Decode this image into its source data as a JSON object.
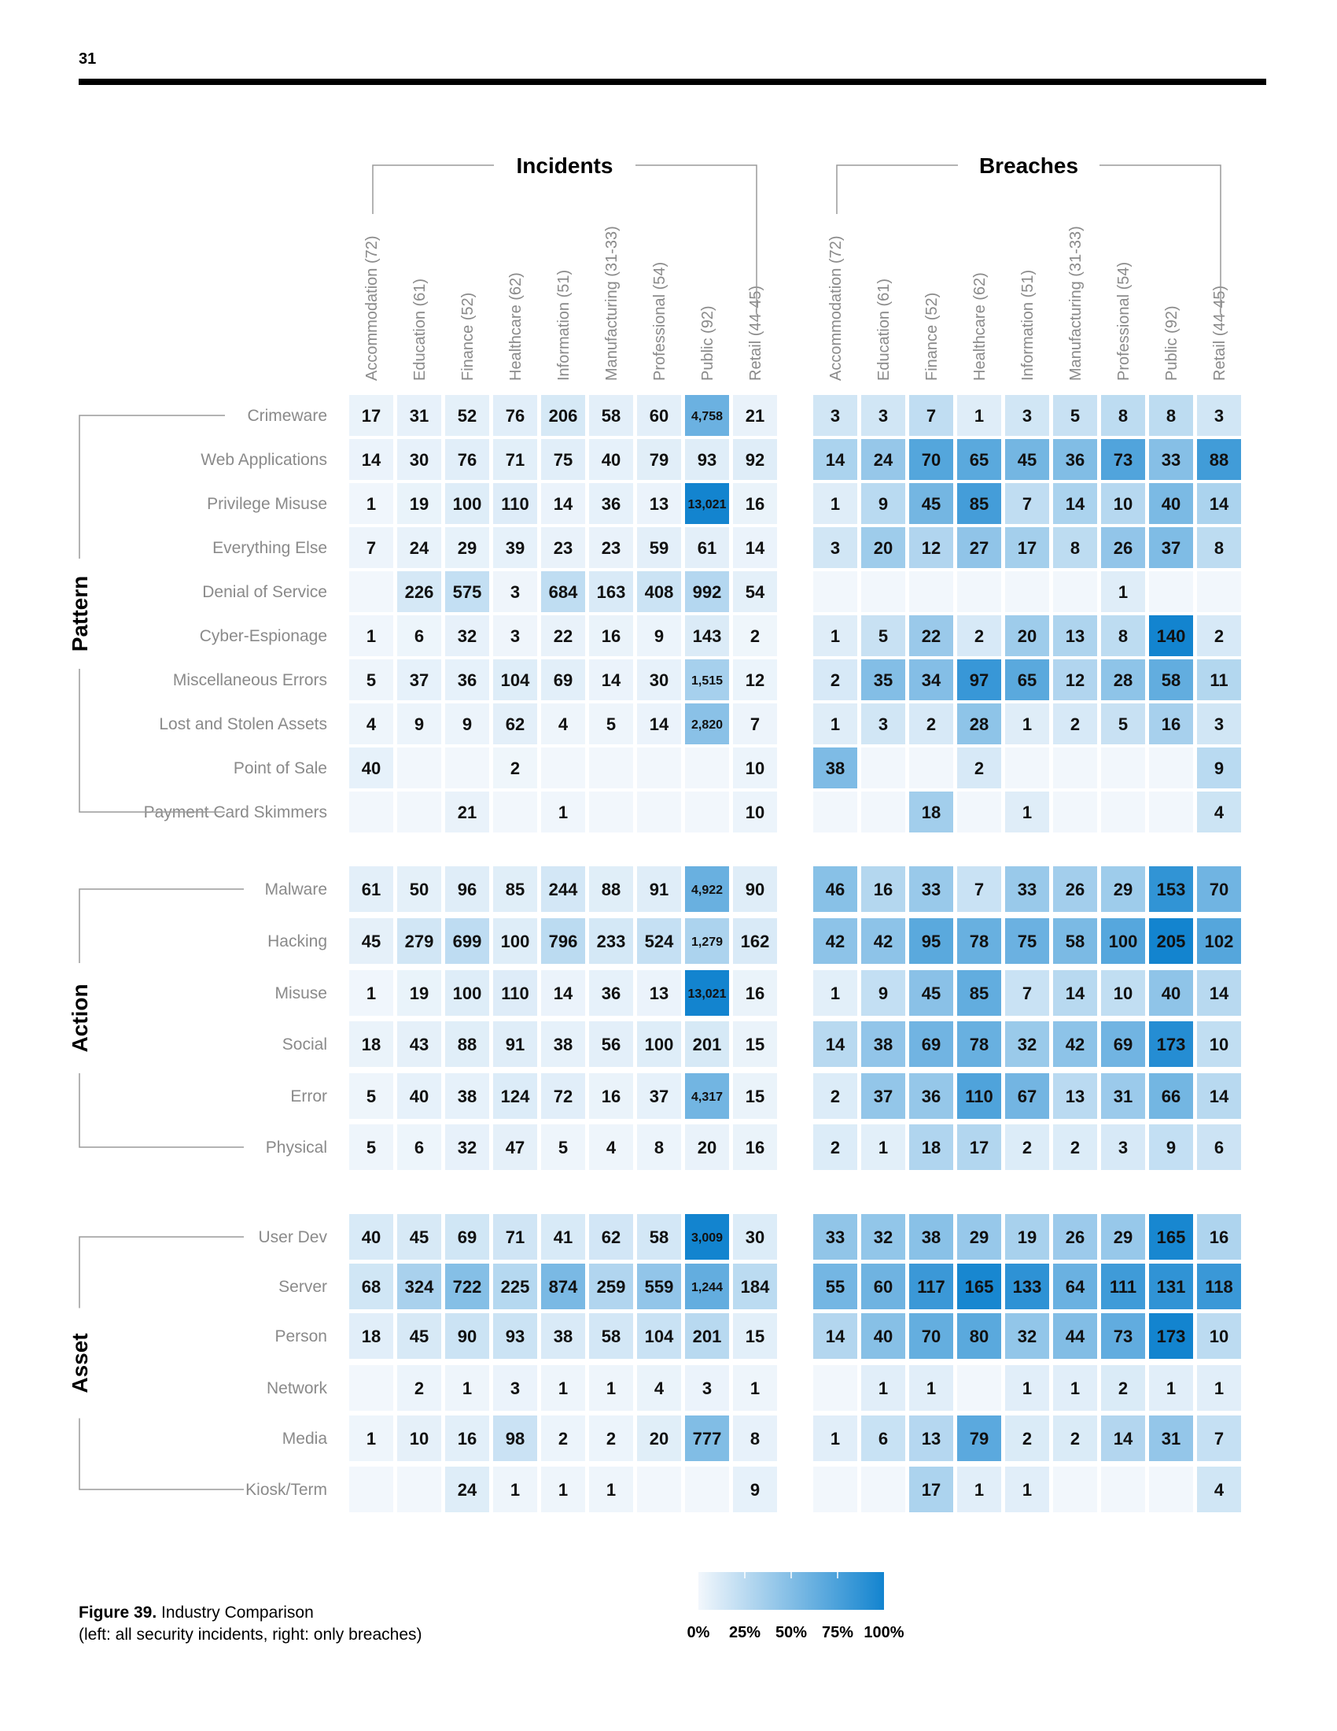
{
  "page_number": "31",
  "caption": {
    "figure": "Figure 39.",
    "title": "Industry Comparison",
    "note": "(left: all security incidents, right: only breaches)"
  },
  "legend": {
    "ticks": [
      "0%",
      "25%",
      "50%",
      "75%",
      "100%"
    ],
    "color_low": "#f2f7fc",
    "color_high": "#1384cf"
  },
  "chart_data": {
    "type": "heatmap",
    "panels": [
      {
        "title": "Incidents",
        "columns": [
          "Accommodation (72)",
          "Education (61)",
          "Finance (52)",
          "Healthcare (62)",
          "Information (51)",
          "Manufacturing (31-33)",
          "Professional (54)",
          "Public (92)",
          "Retail (44-45)"
        ]
      },
      {
        "title": "Breaches",
        "columns": [
          "Accommodation (72)",
          "Education (61)",
          "Finance (52)",
          "Healthcare (62)",
          "Information (51)",
          "Manufacturing (31-33)",
          "Professional (54)",
          "Public (92)",
          "Retail (44-45)"
        ]
      }
    ],
    "groups": [
      {
        "name": "Pattern",
        "rows": [
          {
            "label": "Crimeware",
            "incidents": [
              17,
              31,
              52,
              76,
              206,
              58,
              60,
              4758,
              21
            ],
            "breaches": [
              3,
              3,
              7,
              1,
              3,
              5,
              8,
              8,
              3
            ]
          },
          {
            "label": "Web Applications",
            "incidents": [
              14,
              30,
              76,
              71,
              75,
              40,
              79,
              93,
              92
            ],
            "breaches": [
              14,
              24,
              70,
              65,
              45,
              36,
              73,
              33,
              88
            ]
          },
          {
            "label": "Privilege Misuse",
            "incidents": [
              1,
              19,
              100,
              110,
              14,
              36,
              13,
              13021,
              16
            ],
            "breaches": [
              1,
              9,
              45,
              85,
              7,
              14,
              10,
              40,
              14
            ]
          },
          {
            "label": "Everything Else",
            "incidents": [
              7,
              24,
              29,
              39,
              23,
              23,
              59,
              61,
              14
            ],
            "breaches": [
              3,
              20,
              12,
              27,
              17,
              8,
              26,
              37,
              8
            ]
          },
          {
            "label": "Denial of Service",
            "incidents": [
              null,
              226,
              575,
              3,
              684,
              163,
              408,
              992,
              54
            ],
            "breaches": [
              null,
              null,
              null,
              null,
              null,
              null,
              1,
              null,
              null
            ]
          },
          {
            "label": "Cyber-Espionage",
            "incidents": [
              1,
              6,
              32,
              3,
              22,
              16,
              9,
              143,
              2
            ],
            "breaches": [
              1,
              5,
              22,
              2,
              20,
              13,
              8,
              140,
              2
            ]
          },
          {
            "label": "Miscellaneous Errors",
            "incidents": [
              5,
              37,
              36,
              104,
              69,
              14,
              30,
              1515,
              12
            ],
            "breaches": [
              2,
              35,
              34,
              97,
              65,
              12,
              28,
              58,
              11
            ]
          },
          {
            "label": "Lost and Stolen Assets",
            "incidents": [
              4,
              9,
              9,
              62,
              4,
              5,
              14,
              2820,
              7
            ],
            "breaches": [
              1,
              3,
              2,
              28,
              1,
              2,
              5,
              16,
              3
            ]
          },
          {
            "label": "Point of Sale",
            "incidents": [
              40,
              null,
              null,
              2,
              null,
              null,
              null,
              null,
              10
            ],
            "breaches": [
              38,
              null,
              null,
              2,
              null,
              null,
              null,
              null,
              9
            ]
          },
          {
            "label": "Payment Card Skimmers",
            "incidents": [
              null,
              null,
              21,
              null,
              1,
              null,
              null,
              null,
              10
            ],
            "breaches": [
              null,
              null,
              18,
              null,
              1,
              null,
              null,
              null,
              4
            ]
          }
        ]
      },
      {
        "name": "Action",
        "rows": [
          {
            "label": "Malware",
            "incidents": [
              61,
              50,
              96,
              85,
              244,
              88,
              91,
              4922,
              90
            ],
            "breaches": [
              46,
              16,
              33,
              7,
              33,
              26,
              29,
              153,
              70
            ]
          },
          {
            "label": "Hacking",
            "incidents": [
              45,
              279,
              699,
              100,
              796,
              233,
              524,
              1279,
              162
            ],
            "breaches": [
              42,
              42,
              95,
              78,
              75,
              58,
              100,
              205,
              102
            ]
          },
          {
            "label": "Misuse",
            "incidents": [
              1,
              19,
              100,
              110,
              14,
              36,
              13,
              13021,
              16
            ],
            "breaches": [
              1,
              9,
              45,
              85,
              7,
              14,
              10,
              40,
              14
            ]
          },
          {
            "label": "Social",
            "incidents": [
              18,
              43,
              88,
              91,
              38,
              56,
              100,
              201,
              15
            ],
            "breaches": [
              14,
              38,
              69,
              78,
              32,
              42,
              69,
              173,
              10
            ]
          },
          {
            "label": "Error",
            "incidents": [
              5,
              40,
              38,
              124,
              72,
              16,
              37,
              4317,
              15
            ],
            "breaches": [
              2,
              37,
              36,
              110,
              67,
              13,
              31,
              66,
              14
            ]
          },
          {
            "label": "Physical",
            "incidents": [
              5,
              6,
              32,
              47,
              5,
              4,
              8,
              20,
              16
            ],
            "breaches": [
              2,
              1,
              18,
              17,
              2,
              2,
              3,
              9,
              6
            ]
          }
        ]
      },
      {
        "name": "Asset",
        "rows": [
          {
            "label": "User Dev",
            "incidents": [
              40,
              45,
              69,
              71,
              41,
              62,
              58,
              3009,
              30
            ],
            "breaches": [
              33,
              32,
              38,
              29,
              19,
              26,
              29,
              165,
              16
            ]
          },
          {
            "label": "Server",
            "incidents": [
              68,
              324,
              722,
              225,
              874,
              259,
              559,
              1244,
              184
            ],
            "breaches": [
              55,
              60,
              117,
              165,
              133,
              64,
              111,
              131,
              118
            ]
          },
          {
            "label": "Person",
            "incidents": [
              18,
              45,
              90,
              93,
              38,
              58,
              104,
              201,
              15
            ],
            "breaches": [
              14,
              40,
              70,
              80,
              32,
              44,
              73,
              173,
              10
            ]
          },
          {
            "label": "Network",
            "incidents": [
              null,
              2,
              1,
              3,
              1,
              1,
              4,
              3,
              1
            ],
            "breaches": [
              null,
              1,
              1,
              null,
              1,
              1,
              2,
              1,
              1
            ]
          },
          {
            "label": "Media",
            "incidents": [
              1,
              10,
              16,
              98,
              2,
              2,
              20,
              777,
              8
            ],
            "breaches": [
              1,
              6,
              13,
              79,
              2,
              2,
              14,
              31,
              7
            ]
          },
          {
            "label": "Kiosk/Term",
            "incidents": [
              null,
              null,
              24,
              1,
              1,
              1,
              null,
              null,
              9
            ],
            "breaches": [
              null,
              null,
              17,
              1,
              1,
              null,
              null,
              null,
              4
            ]
          }
        ]
      }
    ]
  }
}
